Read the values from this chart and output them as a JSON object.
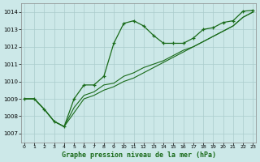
{
  "title": "Graphe pression niveau de la mer (hPa)",
  "bg_color": "#cce8e8",
  "grid_color": "#aacccc",
  "line_color": "#1a6b1a",
  "xlim": [
    -0.3,
    23.3
  ],
  "ylim": [
    1006.5,
    1014.5
  ],
  "xticks": [
    0,
    1,
    2,
    3,
    4,
    5,
    6,
    7,
    8,
    9,
    10,
    11,
    12,
    13,
    14,
    15,
    16,
    17,
    18,
    19,
    20,
    21,
    22,
    23
  ],
  "yticks": [
    1007,
    1008,
    1009,
    1010,
    1011,
    1012,
    1013,
    1014
  ],
  "line_wavy_x": [
    0,
    1,
    2,
    3,
    4,
    5,
    6,
    7,
    8,
    9,
    10,
    11,
    12,
    13,
    14,
    15,
    16,
    17,
    18,
    19,
    20,
    21,
    22,
    23
  ],
  "line_wavy_y": [
    1009.0,
    1009.0,
    1008.4,
    1007.7,
    1007.4,
    1009.0,
    1009.8,
    1009.8,
    1010.3,
    1012.2,
    1013.35,
    1013.5,
    1013.2,
    1012.65,
    1012.2,
    1012.2,
    1012.2,
    1012.5,
    1013.0,
    1013.1,
    1013.4,
    1013.5,
    1014.05,
    1014.1
  ],
  "line_lin1_x": [
    0,
    1,
    2,
    3,
    4,
    5,
    6,
    7,
    8,
    9,
    10,
    11,
    12,
    13,
    14,
    15,
    16,
    17,
    18,
    19,
    20,
    21,
    22,
    23
  ],
  "line_lin1_y": [
    1009.0,
    1009.0,
    1008.4,
    1007.7,
    1007.4,
    1008.5,
    1009.2,
    1009.4,
    1009.8,
    1009.9,
    1010.3,
    1010.5,
    1010.8,
    1011.0,
    1011.2,
    1011.5,
    1011.8,
    1012.0,
    1012.3,
    1012.6,
    1012.9,
    1013.2,
    1013.7,
    1014.0
  ],
  "line_lin2_x": [
    0,
    1,
    2,
    3,
    4,
    5,
    6,
    7,
    8,
    9,
    10,
    11,
    12,
    13,
    14,
    15,
    16,
    17,
    18,
    19,
    20,
    21,
    22,
    23
  ],
  "line_lin2_y": [
    1009.0,
    1009.0,
    1008.4,
    1007.7,
    1007.4,
    1008.2,
    1009.0,
    1009.2,
    1009.5,
    1009.7,
    1010.0,
    1010.2,
    1010.5,
    1010.8,
    1011.1,
    1011.4,
    1011.7,
    1012.0,
    1012.3,
    1012.6,
    1012.9,
    1013.2,
    1013.7,
    1014.0
  ],
  "marker_x": [
    0,
    1,
    2,
    3,
    4,
    5,
    6,
    7,
    8,
    9,
    10,
    11,
    12,
    13,
    14,
    15,
    16,
    17,
    18,
    19,
    20,
    21,
    22,
    23
  ],
  "marker_y": [
    1009.0,
    1009.0,
    1008.4,
    1007.7,
    1007.4,
    1009.0,
    1009.8,
    1009.8,
    1010.3,
    1012.2,
    1013.35,
    1013.5,
    1013.2,
    1012.65,
    1012.2,
    1012.2,
    1012.2,
    1012.5,
    1013.0,
    1013.1,
    1013.4,
    1013.5,
    1014.05,
    1014.1
  ]
}
